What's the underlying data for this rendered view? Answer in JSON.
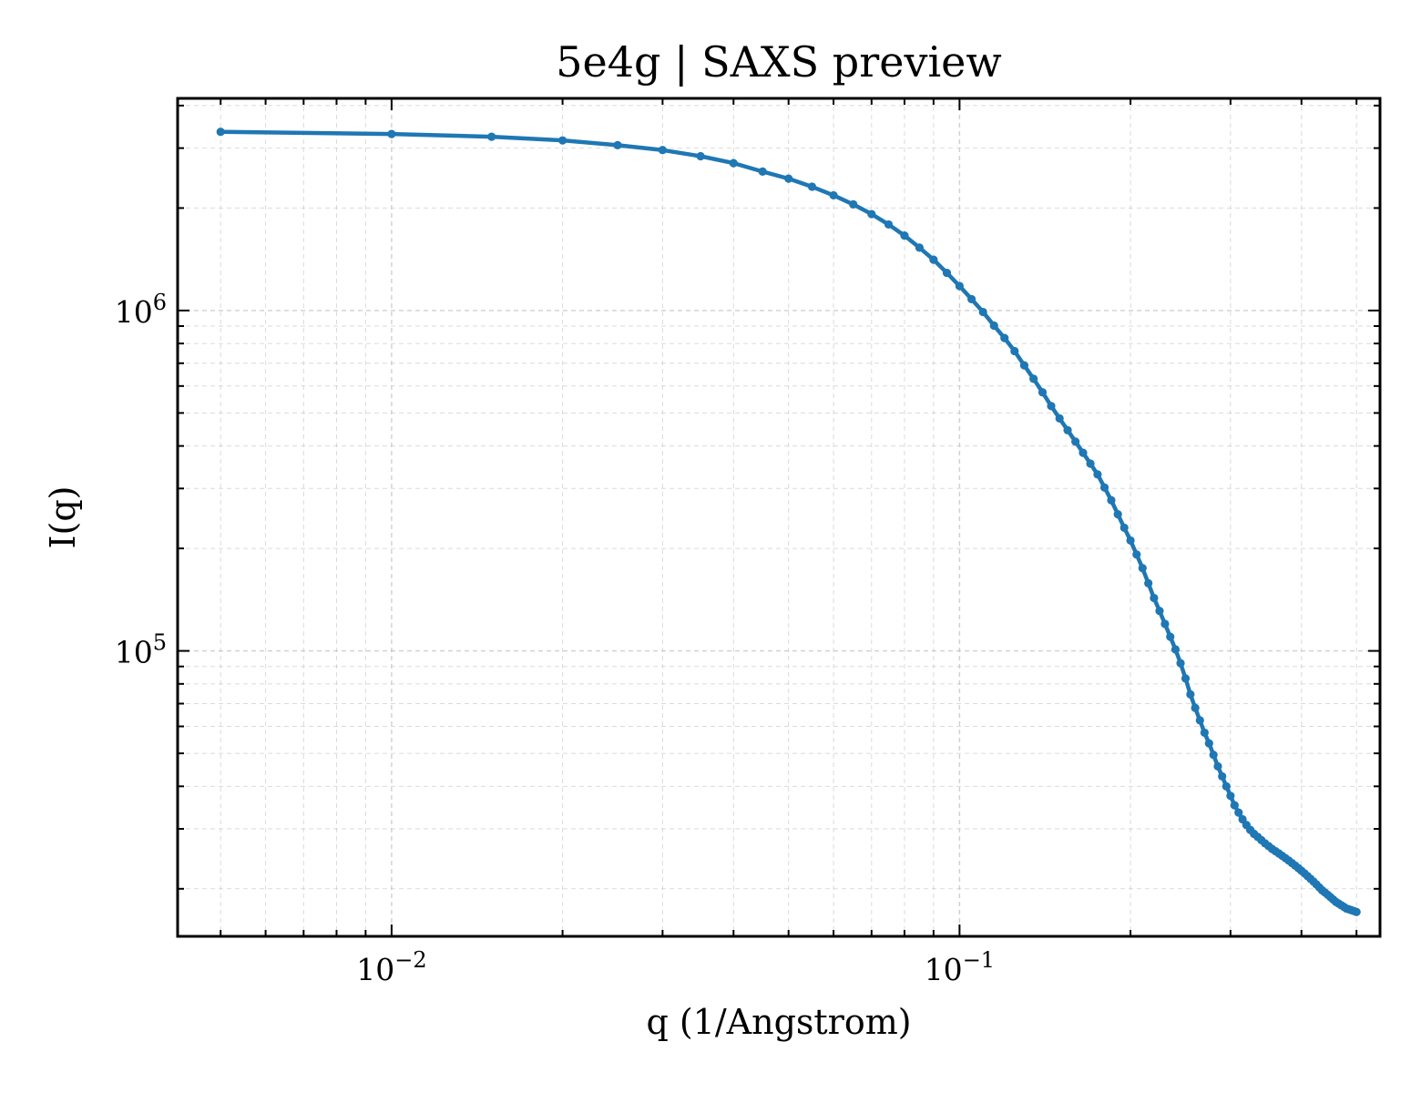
{
  "chart_data": {
    "type": "line",
    "title": "5e4g | SAXS preview",
    "xlabel": "q (1/Angstrom)",
    "ylabel": "I(q)",
    "xscale": "log",
    "yscale": "log",
    "xlim": [
      0.0042,
      0.55
    ],
    "ylim": [
      14500,
      4200000
    ],
    "grid": true,
    "legend": "none",
    "line_color": "#1f77b4",
    "x_ticks": [
      {
        "value": 0.01,
        "base": "10",
        "exponent": "−2"
      },
      {
        "value": 0.1,
        "base": "10",
        "exponent": "−1"
      }
    ],
    "y_ticks": [
      {
        "value": 100000,
        "base": "10",
        "exponent": "5"
      },
      {
        "value": 1000000,
        "base": "10",
        "exponent": "6"
      }
    ],
    "series": [
      {
        "x": [
          0.005,
          0.01,
          0.015,
          0.02,
          0.025,
          0.03,
          0.035,
          0.04,
          0.045,
          0.05,
          0.055,
          0.06,
          0.065,
          0.07,
          0.075,
          0.08,
          0.085,
          0.09,
          0.095,
          0.1,
          0.105,
          0.11,
          0.115,
          0.12,
          0.125,
          0.13,
          0.135,
          0.14,
          0.145,
          0.15,
          0.155,
          0.16,
          0.165,
          0.17,
          0.175,
          0.18,
          0.185,
          0.19,
          0.195,
          0.2,
          0.205,
          0.21,
          0.215,
          0.22,
          0.225,
          0.23,
          0.235,
          0.24,
          0.245,
          0.25,
          0.255,
          0.26,
          0.265,
          0.27,
          0.275,
          0.28,
          0.285,
          0.29,
          0.295,
          0.3,
          0.305,
          0.31,
          0.315,
          0.32,
          0.325,
          0.33,
          0.335,
          0.34,
          0.345,
          0.35,
          0.355,
          0.36,
          0.365,
          0.37,
          0.375,
          0.38,
          0.385,
          0.39,
          0.395,
          0.4,
          0.405,
          0.41,
          0.415,
          0.42,
          0.425,
          0.43,
          0.435,
          0.44,
          0.445,
          0.45,
          0.455,
          0.46,
          0.465,
          0.47,
          0.475,
          0.48,
          0.485,
          0.49,
          0.495,
          0.5
        ],
        "y": [
          3350000,
          3300000,
          3240000,
          3160000,
          3060000,
          2960000,
          2840000,
          2710000,
          2560000,
          2440000,
          2310000,
          2180000,
          2050000,
          1920000,
          1790000,
          1660000,
          1530000,
          1410000,
          1290000,
          1180000,
          1080000,
          990000,
          903000,
          830000,
          760000,
          690000,
          630000,
          575000,
          524000,
          482000,
          445000,
          412000,
          382000,
          355000,
          330000,
          302000,
          277000,
          252000,
          230000,
          211000,
          192000,
          175000,
          158000,
          143000,
          131000,
          120000,
          110000,
          101000,
          92000,
          83000,
          74500,
          68000,
          62500,
          57500,
          53500,
          49500,
          45800,
          42800,
          40000,
          37500,
          35200,
          33500,
          32000,
          30800,
          29800,
          29000,
          28400,
          27800,
          27200,
          26700,
          26200,
          25800,
          25400,
          25000,
          24600,
          24200,
          23800,
          23400,
          23000,
          22600,
          22200,
          21800,
          21400,
          21000,
          20600,
          20200,
          19800,
          19500,
          19200,
          18900,
          18600,
          18300,
          18100,
          17900,
          17700,
          17500,
          17400,
          17300,
          17200,
          17100
        ]
      }
    ]
  }
}
